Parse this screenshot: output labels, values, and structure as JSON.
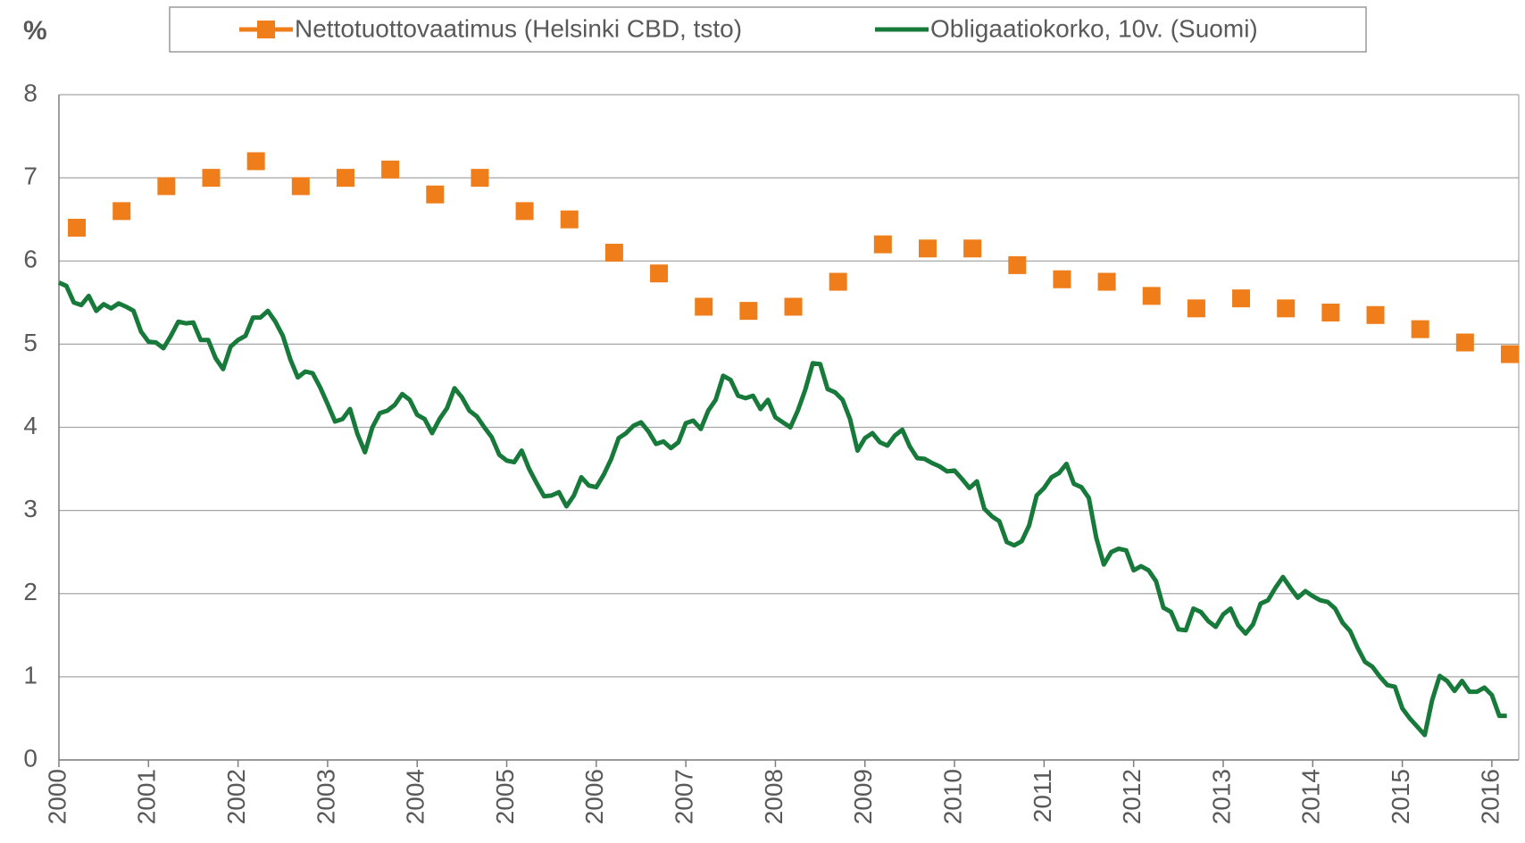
{
  "chart_data": {
    "type": "line",
    "ylabel": "%",
    "xlim": [
      2000,
      2016.3
    ],
    "ylim": [
      0,
      8
    ],
    "xticks": [
      2000,
      2001,
      2002,
      2003,
      2004,
      2005,
      2006,
      2007,
      2008,
      2009,
      2010,
      2011,
      2012,
      2013,
      2014,
      2015,
      2016
    ],
    "yticks": [
      0,
      1,
      2,
      3,
      4,
      5,
      6,
      7,
      8
    ],
    "grid": true,
    "legend": "top",
    "series": [
      {
        "name": "Nettotuottovaatimus (Helsinki CBD, tsto)",
        "color": "#ee7d1a",
        "mode": "markers",
        "marker": "square",
        "x": [
          2000.2,
          2000.7,
          2001.2,
          2001.7,
          2002.2,
          2002.7,
          2003.2,
          2003.7,
          2004.2,
          2004.7,
          2005.2,
          2005.7,
          2006.2,
          2006.7,
          2007.2,
          2007.7,
          2008.2,
          2008.7,
          2009.2,
          2009.7,
          2010.2,
          2010.7,
          2011.2,
          2011.7,
          2012.2,
          2012.7,
          2013.2,
          2013.7,
          2014.2,
          2014.7,
          2015.2,
          2015.7,
          2016.2
        ],
        "values": [
          6.4,
          6.6,
          6.9,
          7.0,
          7.2,
          6.9,
          7.0,
          7.1,
          6.8,
          7.0,
          6.6,
          6.5,
          6.1,
          5.85,
          5.45,
          5.4,
          5.45,
          5.75,
          6.2,
          6.15,
          6.15,
          5.95,
          5.78,
          5.75,
          5.58,
          5.43,
          5.55,
          5.43,
          5.38,
          5.35,
          5.18,
          5.02,
          4.88
        ]
      },
      {
        "name": "Obligaatiokorko, 10v. (Suomi)",
        "color": "#187a3a",
        "mode": "line",
        "x": [
          2000.0,
          2000.083,
          2000.167,
          2000.25,
          2000.333,
          2000.417,
          2000.5,
          2000.583,
          2000.667,
          2000.75,
          2000.833,
          2000.917,
          2001.0,
          2001.083,
          2001.167,
          2001.25,
          2001.333,
          2001.417,
          2001.5,
          2001.583,
          2001.667,
          2001.75,
          2001.833,
          2001.917,
          2002.0,
          2002.083,
          2002.167,
          2002.25,
          2002.333,
          2002.417,
          2002.5,
          2002.583,
          2002.667,
          2002.75,
          2002.833,
          2002.917,
          2003.0,
          2003.083,
          2003.167,
          2003.25,
          2003.333,
          2003.417,
          2003.5,
          2003.583,
          2003.667,
          2003.75,
          2003.833,
          2003.917,
          2004.0,
          2004.083,
          2004.167,
          2004.25,
          2004.333,
          2004.417,
          2004.5,
          2004.583,
          2004.667,
          2004.75,
          2004.833,
          2004.917,
          2005.0,
          2005.083,
          2005.167,
          2005.25,
          2005.333,
          2005.417,
          2005.5,
          2005.583,
          2005.667,
          2005.75,
          2005.833,
          2005.917,
          2006.0,
          2006.083,
          2006.167,
          2006.25,
          2006.333,
          2006.417,
          2006.5,
          2006.583,
          2006.667,
          2006.75,
          2006.833,
          2006.917,
          2007.0,
          2007.083,
          2007.167,
          2007.25,
          2007.333,
          2007.417,
          2007.5,
          2007.583,
          2007.667,
          2007.75,
          2007.833,
          2007.917,
          2008.0,
          2008.083,
          2008.167,
          2008.25,
          2008.333,
          2008.417,
          2008.5,
          2008.583,
          2008.667,
          2008.75,
          2008.833,
          2008.917,
          2009.0,
          2009.083,
          2009.167,
          2009.25,
          2009.333,
          2009.417,
          2009.5,
          2009.583,
          2009.667,
          2009.75,
          2009.833,
          2009.917,
          2010.0,
          2010.083,
          2010.167,
          2010.25,
          2010.333,
          2010.417,
          2010.5,
          2010.583,
          2010.667,
          2010.75,
          2010.833,
          2010.917,
          2011.0,
          2011.083,
          2011.167,
          2011.25,
          2011.333,
          2011.417,
          2011.5,
          2011.583,
          2011.667,
          2011.75,
          2011.833,
          2011.917,
          2012.0,
          2012.083,
          2012.167,
          2012.25,
          2012.333,
          2012.417,
          2012.5,
          2012.583,
          2012.667,
          2012.75,
          2012.833,
          2012.917,
          2013.0,
          2013.083,
          2013.167,
          2013.25,
          2013.333,
          2013.417,
          2013.5,
          2013.583,
          2013.667,
          2013.75,
          2013.833,
          2013.917,
          2014.0,
          2014.083,
          2014.167,
          2014.25,
          2014.333,
          2014.417,
          2014.5,
          2014.583,
          2014.667,
          2014.75,
          2014.833,
          2014.917,
          2015.0,
          2015.083,
          2015.167,
          2015.25,
          2015.333,
          2015.417,
          2015.5,
          2015.583,
          2015.667,
          2015.75,
          2015.833,
          2015.917,
          2016.0,
          2016.083,
          2016.167
        ],
        "values": [
          5.74,
          5.7,
          5.5,
          5.47,
          5.58,
          5.4,
          5.48,
          5.43,
          5.49,
          5.45,
          5.4,
          5.15,
          5.03,
          5.02,
          4.95,
          5.1,
          5.27,
          5.25,
          5.26,
          5.05,
          5.05,
          4.83,
          4.7,
          4.97,
          5.05,
          5.1,
          5.32,
          5.32,
          5.4,
          5.27,
          5.1,
          4.82,
          4.6,
          4.67,
          4.65,
          4.48,
          4.28,
          4.07,
          4.1,
          4.22,
          3.92,
          3.7,
          4.0,
          4.17,
          4.2,
          4.27,
          4.4,
          4.33,
          4.15,
          4.1,
          3.93,
          4.1,
          4.23,
          4.47,
          4.36,
          4.2,
          4.13,
          4.0,
          3.88,
          3.67,
          3.6,
          3.58,
          3.72,
          3.5,
          3.33,
          3.17,
          3.18,
          3.22,
          3.05,
          3.18,
          3.4,
          3.3,
          3.28,
          3.43,
          3.62,
          3.87,
          3.93,
          4.02,
          4.06,
          3.95,
          3.8,
          3.83,
          3.75,
          3.82,
          4.05,
          4.08,
          3.98,
          4.2,
          4.33,
          4.62,
          4.57,
          4.38,
          4.35,
          4.38,
          4.22,
          4.33,
          4.12,
          4.06,
          4.0,
          4.2,
          4.45,
          4.77,
          4.76,
          4.46,
          4.42,
          4.33,
          4.1,
          3.72,
          3.87,
          3.93,
          3.82,
          3.78,
          3.9,
          3.97,
          3.77,
          3.63,
          3.62,
          3.57,
          3.53,
          3.47,
          3.48,
          3.38,
          3.27,
          3.35,
          3.02,
          2.93,
          2.87,
          2.62,
          2.58,
          2.63,
          2.82,
          3.18,
          3.27,
          3.4,
          3.45,
          3.56,
          3.32,
          3.28,
          3.15,
          2.67,
          2.35,
          2.5,
          2.54,
          2.52,
          2.28,
          2.33,
          2.28,
          2.15,
          1.83,
          1.78,
          1.57,
          1.56,
          1.82,
          1.78,
          1.67,
          1.6,
          1.75,
          1.82,
          1.62,
          1.52,
          1.63,
          1.88,
          1.92,
          2.07,
          2.2,
          2.07,
          1.95,
          2.03,
          1.97,
          1.92,
          1.9,
          1.82,
          1.65,
          1.55,
          1.35,
          1.18,
          1.12,
          1.0,
          0.9,
          0.88,
          0.62,
          0.5,
          0.4,
          0.3,
          0.72,
          1.01,
          0.95,
          0.83,
          0.95,
          0.82,
          0.82,
          0.87,
          0.78,
          0.53,
          0.53
        ]
      }
    ]
  }
}
